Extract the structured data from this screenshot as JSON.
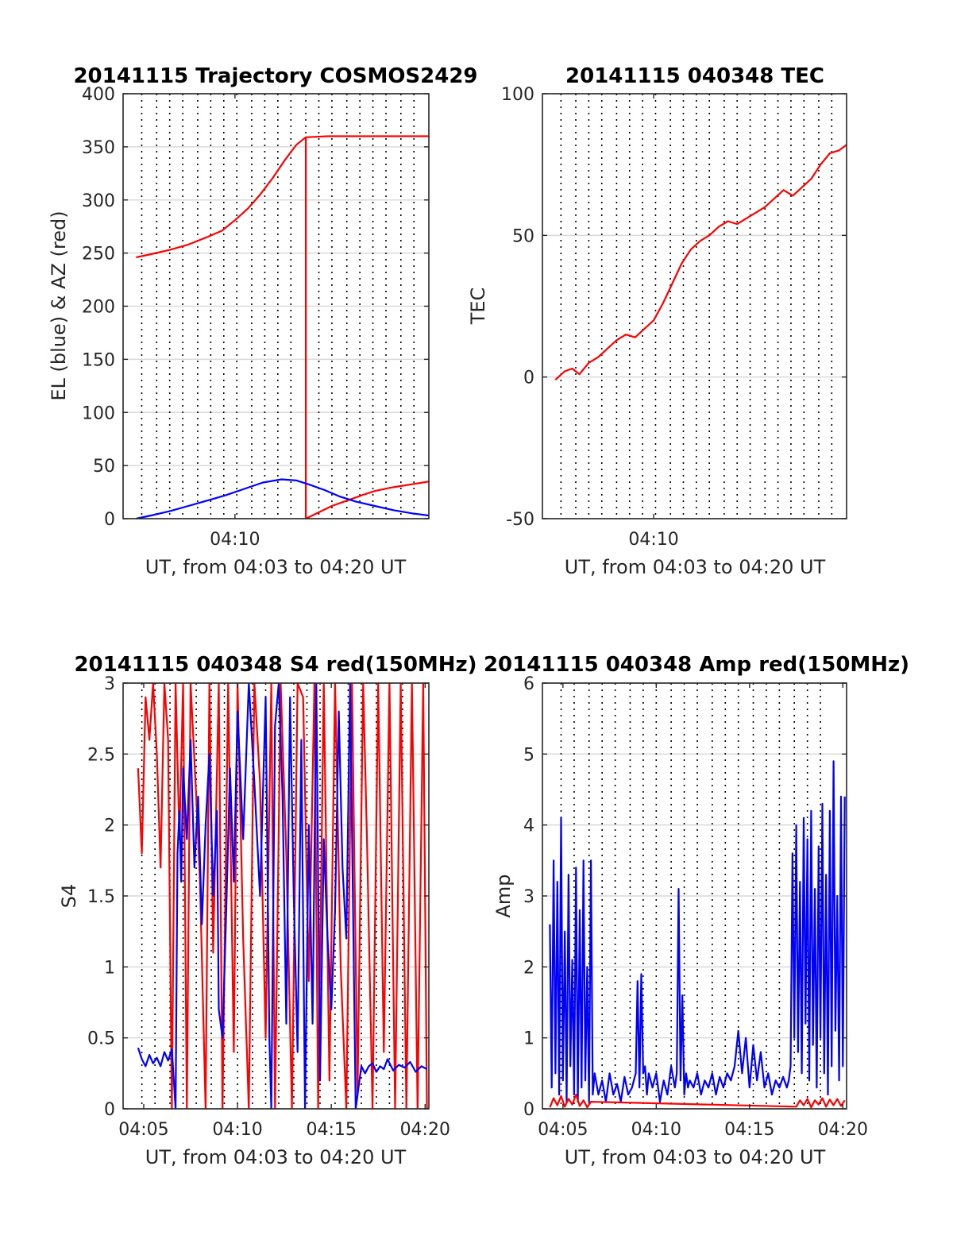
{
  "colors": {
    "red": "#ff0000",
    "blue": "#0000ff",
    "grid": "#d9d9d9",
    "axis": "#262626"
  },
  "chart_data": [
    {
      "id": "trajectory",
      "type": "line",
      "title": "20141115 Trajectory COSMOS2429",
      "xlabel": "UT, from 04:03 to 04:20 UT",
      "ylabel": "EL (blue) & AZ (red)",
      "xlim": [
        4.0,
        20.4
      ],
      "ylim": [
        0,
        400
      ],
      "yticks": [
        0,
        50,
        100,
        150,
        200,
        250,
        300,
        350,
        400
      ],
      "xticks": [
        {
          "v": 10,
          "label": "04:10"
        }
      ],
      "vlines": [
        5,
        5.8,
        6.5,
        7.2,
        8.0,
        8.7,
        9.4,
        10.1,
        10.9,
        11.6,
        12.3,
        13.0,
        13.8,
        14.5,
        15.2,
        16.0,
        16.7,
        17.4,
        18.1,
        18.9,
        19.6
      ],
      "series": [
        {
          "color": "red",
          "x": [
            4.7,
            5.5,
            6.5,
            7.5,
            8.5,
            9.3,
            10.0,
            10.7,
            11.3,
            12.0,
            12.7,
            13.3,
            13.8,
            15.0,
            16.0,
            17.0,
            18.0,
            19.0,
            20.0,
            20.4
          ],
          "y": [
            246,
            249,
            253,
            258,
            265,
            271,
            281,
            292,
            304,
            320,
            338,
            352,
            359,
            360,
            360,
            360,
            360,
            360,
            360,
            360
          ]
        },
        {
          "color": "red",
          "x": [
            13.8,
            13.8
          ],
          "y": [
            359,
            0
          ]
        },
        {
          "color": "red",
          "x": [
            13.8,
            14.5,
            15.2,
            16.0,
            16.8,
            17.5,
            18.3,
            19.0,
            19.7,
            20.4
          ],
          "y": [
            0,
            6,
            12,
            17,
            22,
            26,
            29,
            31,
            33,
            35
          ]
        },
        {
          "color": "blue",
          "x": [
            4.7,
            5.5,
            6.5,
            7.5,
            8.5,
            9.5,
            10.5,
            11.5,
            12.5,
            13.3,
            14.0,
            14.8,
            15.6,
            16.5,
            17.5,
            18.5,
            19.5,
            20.4
          ],
          "y": [
            0,
            3,
            7,
            12,
            17,
            22,
            28,
            34,
            37,
            36,
            32,
            27,
            21,
            16,
            12,
            8,
            5,
            3
          ]
        }
      ]
    },
    {
      "id": "tec",
      "type": "line",
      "title": "20141115 040348 TEC",
      "xlabel": "UT, from 04:03 to 04:20 UT",
      "ylabel": "TEC",
      "xlim": [
        4.0,
        20.4
      ],
      "ylim": [
        -50,
        100
      ],
      "yticks": [
        -50,
        0,
        50,
        100
      ],
      "xticks": [
        {
          "v": 10,
          "label": "04:10"
        }
      ],
      "vlines": [
        5,
        5.8,
        6.5,
        7.2,
        8.0,
        8.7,
        9.4,
        10.1,
        10.9,
        11.6,
        12.3,
        13.0,
        13.8,
        14.5,
        15.2,
        16.0,
        16.7,
        17.4,
        18.1,
        18.9,
        19.6
      ],
      "series": [
        {
          "color": "red",
          "x": [
            4.7,
            5.2,
            5.6,
            6.0,
            6.5,
            7.0,
            7.5,
            8.0,
            8.5,
            9.0,
            9.5,
            10.0,
            10.5,
            11.0,
            11.5,
            12.0,
            12.5,
            13.0,
            13.5,
            14.0,
            14.5,
            15.0,
            15.5,
            16.0,
            16.5,
            17.0,
            17.5,
            18.0,
            18.5,
            19.0,
            19.5,
            20.0,
            20.4
          ],
          "y": [
            -1,
            2,
            3,
            1,
            5,
            7,
            10,
            13,
            15,
            14,
            17,
            20,
            26,
            33,
            40,
            45,
            48,
            50,
            53,
            55,
            54,
            56,
            58,
            60,
            63,
            66,
            64,
            67,
            70,
            75,
            79,
            80,
            82
          ]
        }
      ]
    },
    {
      "id": "s4",
      "type": "line",
      "title": "20141115 040348 S4 red(150MHz)",
      "xlabel": "UT, from 04:03 to 04:20 UT",
      "ylabel": "S4",
      "xlim": [
        3.9,
        20.2
      ],
      "ylim": [
        0,
        3
      ],
      "yticks": [
        0,
        0.5,
        1,
        1.5,
        2,
        2.5,
        3
      ],
      "xticks": [
        {
          "v": 5,
          "label": "04:05"
        },
        {
          "v": 10,
          "label": "04:10"
        },
        {
          "v": 15,
          "label": "04:15"
        },
        {
          "v": 20,
          "label": "04:20"
        }
      ],
      "vlines": [
        4.9,
        5.6,
        6.4,
        7.1,
        7.8,
        8.6,
        9.3,
        10.0,
        10.8,
        11.5,
        12.2,
        13.0,
        13.7,
        14.4,
        15.2,
        15.9,
        16.6,
        17.4,
        18.1,
        18.8
      ],
      "series": [
        {
          "color": "red",
          "x": [
            4.7,
            4.9,
            5.1,
            5.3,
            5.5,
            5.7,
            5.9,
            6.1,
            6.3,
            6.5,
            6.7,
            6.9,
            7.1,
            7.3,
            7.5,
            7.8,
            8.0,
            8.3,
            8.5,
            8.7,
            9.0,
            9.2,
            9.5,
            9.8,
            10.0,
            10.3,
            10.6,
            10.9,
            11.2,
            11.5,
            11.8,
            12.0,
            12.3,
            12.6,
            12.9,
            13.2,
            13.5,
            13.8,
            14.1,
            14.3,
            14.6,
            14.9,
            15.2,
            15.5,
            15.8,
            16.1,
            16.4,
            16.7,
            16.9,
            17.2,
            17.5,
            17.8,
            18.1,
            18.4,
            18.7,
            19.0,
            19.3,
            19.6,
            19.9,
            20.1
          ],
          "y": [
            2.4,
            1.8,
            2.9,
            2.6,
            3,
            2.5,
            1.7,
            3,
            2.6,
            0,
            3,
            1.9,
            3,
            0,
            3,
            2.2,
            1.6,
            0,
            3,
            1.1,
            3,
            0,
            3,
            0.4,
            3,
            1.2,
            0,
            3,
            2.3,
            0.5,
            3,
            0,
            3,
            1.8,
            0,
            3,
            2.9,
            0.9,
            3,
            0,
            3,
            0.2,
            3,
            1,
            0,
            3,
            0.1,
            3,
            1.9,
            0,
            3,
            0.4,
            3,
            0,
            3,
            0,
            3,
            0,
            3,
            0
          ]
        },
        {
          "color": "blue",
          "x": [
            4.7,
            4.9,
            5.1,
            5.3,
            5.5,
            5.7,
            5.9,
            6.1,
            6.3,
            6.5,
            6.7,
            6.8,
            6.9,
            7.0,
            7.1,
            7.3,
            7.5,
            7.7,
            7.9,
            8.1,
            8.3,
            8.5,
            8.7,
            8.9,
            9.0,
            9.2,
            9.4,
            9.6,
            9.8,
            10.0,
            10.3,
            10.6,
            10.9,
            11.2,
            11.5,
            11.7,
            11.8,
            12.0,
            12.2,
            12.4,
            12.6,
            12.8,
            13.0,
            13.2,
            13.4,
            13.6,
            13.8,
            14.0,
            14.2,
            14.4,
            14.6,
            14.8,
            15.0,
            15.2,
            15.4,
            15.6,
            15.8,
            16.0,
            16.3,
            16.6,
            16.8,
            17.0,
            17.2,
            17.4,
            17.6,
            17.8,
            18.0,
            18.3,
            18.6,
            18.9,
            19.2,
            19.5,
            19.8,
            20.1
          ],
          "y": [
            0.43,
            0.35,
            0.3,
            0.38,
            0.32,
            0.36,
            0.3,
            0.4,
            0.34,
            0.42,
            0.0,
            1.8,
            2.1,
            1.6,
            2.4,
            1.9,
            2.6,
            1.7,
            2.2,
            1.3,
            2.0,
            2.5,
            1.5,
            2.1,
            0.7,
            0.5,
            1.4,
            2.4,
            1.6,
            2.8,
            1.9,
            3.0,
            2.3,
            1.5,
            2.9,
            0.5,
            0.0,
            2.7,
            3.0,
            2.2,
            0.6,
            2.9,
            1.5,
            0.4,
            2.6,
            0.0,
            2.0,
            0.6,
            3.0,
            0.2,
            1.9,
            1.2,
            0.7,
            1.4,
            2.8,
            1.7,
            1.2,
            3.0,
            0.0,
            0.3,
            0.25,
            0.3,
            0.32,
            0.26,
            0.3,
            0.28,
            0.35,
            0.27,
            0.31,
            0.29,
            0.33,
            0.26,
            0.3,
            0.28
          ]
        }
      ]
    },
    {
      "id": "amp",
      "type": "line",
      "title": "20141115 040348 Amp red(150MHz)",
      "xlabel": "UT, from 04:03 to 04:20 UT",
      "ylabel": "Amp",
      "xlim": [
        3.9,
        20.2
      ],
      "ylim": [
        0,
        6
      ],
      "yticks": [
        0,
        1,
        2,
        3,
        4,
        5,
        6
      ],
      "xticks": [
        {
          "v": 5,
          "label": "04:05"
        },
        {
          "v": 10,
          "label": "04:10"
        },
        {
          "v": 15,
          "label": "04:15"
        },
        {
          "v": 20,
          "label": "04:20"
        }
      ],
      "vlines": [
        4.9,
        5.6,
        6.4,
        7.1,
        7.8,
        8.6,
        9.3,
        10.0,
        10.8,
        11.5,
        12.2,
        13.0,
        13.7,
        14.4,
        15.2,
        15.9,
        16.6,
        17.4,
        18.1,
        18.8
      ],
      "series": [
        {
          "color": "blue",
          "x": [
            4.3,
            4.4,
            4.5,
            4.6,
            4.7,
            4.8,
            4.9,
            5.0,
            5.1,
            5.2,
            5.3,
            5.4,
            5.5,
            5.6,
            5.7,
            5.8,
            5.9,
            6.0,
            6.1,
            6.2,
            6.3,
            6.4,
            6.5,
            6.6,
            6.7,
            6.9,
            7.1,
            7.3,
            7.5,
            7.7,
            7.9,
            8.1,
            8.3,
            8.5,
            8.7,
            8.9,
            9.0,
            9.1,
            9.2,
            9.3,
            9.4,
            9.5,
            9.6,
            9.8,
            10.0,
            10.2,
            10.4,
            10.6,
            10.8,
            11.0,
            11.1,
            11.2,
            11.3,
            11.4,
            11.5,
            11.6,
            11.7,
            11.8,
            12.0,
            12.2,
            12.4,
            12.6,
            12.8,
            13.0,
            13.2,
            13.4,
            13.6,
            13.8,
            14.0,
            14.2,
            14.4,
            14.6,
            14.8,
            15.0,
            15.2,
            15.4,
            15.6,
            15.8,
            16.0,
            16.2,
            16.4,
            16.6,
            16.8,
            17.0,
            17.1,
            17.2,
            17.3,
            17.4,
            17.5,
            17.6,
            17.7,
            17.8,
            17.9,
            18.0,
            18.1,
            18.2,
            18.3,
            18.4,
            18.5,
            18.6,
            18.7,
            18.8,
            18.9,
            19.0,
            19.1,
            19.2,
            19.3,
            19.4,
            19.5,
            19.6,
            19.7,
            19.8,
            19.9,
            20.0,
            20.1
          ],
          "y": [
            2.6,
            0.3,
            3.5,
            0.5,
            3.2,
            0.2,
            4.1,
            0.4,
            2.5,
            0.1,
            3.3,
            0.6,
            2.1,
            0.2,
            3.4,
            0.1,
            2.8,
            0.3,
            3.5,
            0.4,
            2.0,
            0.1,
            3.5,
            0.2,
            0.5,
            0.2,
            0.4,
            0.1,
            0.5,
            0.2,
            0.35,
            0.1,
            0.45,
            0.2,
            0.3,
            0.5,
            1.8,
            0.3,
            1.9,
            0.5,
            0.6,
            0.2,
            0.5,
            0.3,
            0.5,
            0.1,
            0.4,
            0.2,
            0.6,
            0.3,
            0.5,
            3.1,
            0.4,
            1.6,
            0.2,
            0.5,
            0.3,
            0.4,
            0.3,
            0.5,
            0.2,
            0.4,
            0.3,
            0.5,
            0.2,
            0.45,
            0.3,
            0.5,
            0.4,
            0.6,
            1.1,
            0.5,
            1.0,
            0.3,
            0.9,
            0.4,
            0.8,
            0.3,
            0.5,
            0.2,
            0.4,
            0.3,
            0.45,
            0.3,
            0.4,
            0.6,
            3.6,
            1.0,
            4.0,
            0.8,
            3.2,
            0.5,
            4.1,
            1.2,
            3.8,
            0.4,
            4.2,
            0.9,
            3.1,
            0.3,
            3.7,
            1.0,
            4.3,
            0.5,
            3.3,
            0.2,
            4.2,
            0.6,
            4.9,
            1.1,
            3.0,
            0.4,
            4.4,
            0.6,
            4.4
          ]
        },
        {
          "color": "red",
          "x": [
            4.3,
            4.5,
            4.7,
            4.9,
            5.1,
            5.3,
            5.5,
            5.7,
            5.9,
            6.1,
            6.3,
            6.5,
            17.5,
            17.7,
            17.9,
            18.1,
            18.3,
            18.5,
            18.7,
            18.9,
            19.1,
            19.3,
            19.5,
            19.7,
            19.9,
            20.1
          ],
          "y": [
            0.02,
            0.15,
            0.05,
            0.18,
            0.03,
            0.14,
            0.06,
            0.2,
            0.04,
            0.12,
            0.02,
            0.1,
            0.03,
            0.12,
            0.05,
            0.14,
            0.02,
            0.12,
            0.06,
            0.15,
            0.03,
            0.13,
            0.05,
            0.14,
            0.04,
            0.12
          ]
        }
      ]
    }
  ]
}
